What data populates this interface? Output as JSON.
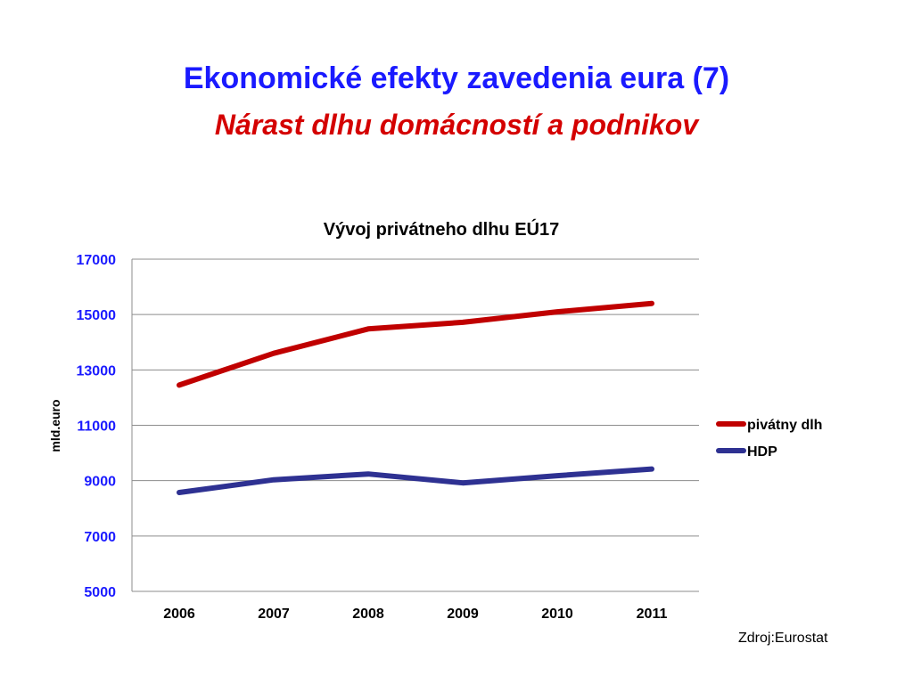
{
  "slide": {
    "title": "Ekonomické efekty zavedenia eura (7)",
    "subtitle": "Nárast  dlhu domácností a podnikov",
    "source": "Zdroj:Eurostat"
  },
  "chart_data": {
    "type": "line",
    "title": "Vývoj privátneho dlhu EÚ17",
    "xlabel": "",
    "ylabel": "mld.euro",
    "x": [
      "2006",
      "2007",
      "2008",
      "2009",
      "2010",
      "2011"
    ],
    "ylim": [
      5000,
      17000
    ],
    "yticks": [
      "5000",
      "7000",
      "9000",
      "11000",
      "13000",
      "15000",
      "17000"
    ],
    "grid": true,
    "legend_position": "right",
    "series": [
      {
        "name": "pivátny dlh",
        "color": "#c00000",
        "values": [
          12450,
          13600,
          14480,
          14720,
          15100,
          15400
        ]
      },
      {
        "name": "HDP",
        "color": "#2e3192",
        "values": [
          8570,
          9030,
          9240,
          8920,
          9180,
          9420
        ]
      }
    ],
    "tick_color": "#1a1aff"
  }
}
